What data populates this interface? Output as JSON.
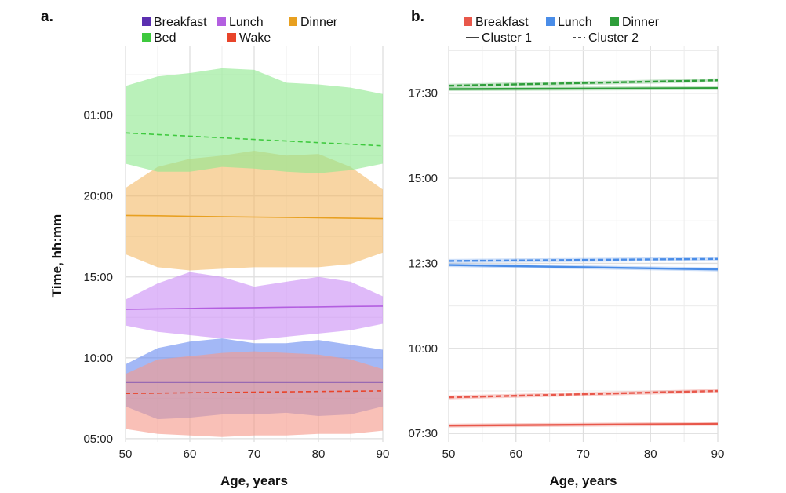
{
  "chart_data": [
    {
      "panel_label": "a.",
      "type": "area",
      "xlabel": "Age, years",
      "ylabel": "Time, hh:mm",
      "xlim": [
        50,
        90
      ],
      "ylim_hours": [
        4.8,
        29.3
      ],
      "x_ticks": [
        50,
        60,
        70,
        80,
        90
      ],
      "x_tick_labels": [
        "50",
        "60",
        "70",
        "80",
        "90"
      ],
      "y_ticks_hours": [
        5,
        10,
        15,
        20,
        25
      ],
      "y_tick_labels": [
        "05:00",
        "10:00",
        "15:00",
        "20:00",
        "01:00"
      ],
      "grid": true,
      "legend": [
        "Breakfast",
        "Lunch",
        "Dinner",
        "Bed",
        "Wake"
      ],
      "series": [
        {
          "name": "Breakfast",
          "color": "#5b2fb0",
          "band_color": "#6a8cf0",
          "line_style": "solid",
          "x": [
            50,
            55,
            60,
            65,
            70,
            75,
            80,
            85,
            90
          ],
          "mean": [
            8.5,
            8.5,
            8.5,
            8.5,
            8.5,
            8.5,
            8.5,
            8.5,
            8.5
          ],
          "upper": [
            9.6,
            10.6,
            11.0,
            11.2,
            10.9,
            10.9,
            11.1,
            10.8,
            10.5
          ],
          "lower": [
            7.0,
            6.2,
            6.3,
            6.5,
            6.5,
            6.6,
            6.4,
            6.5,
            7.0
          ]
        },
        {
          "name": "Lunch",
          "color": "#b35fe0",
          "band_color": "#cc8ff5",
          "line_style": "solid",
          "x": [
            50,
            55,
            60,
            65,
            70,
            75,
            80,
            85,
            90
          ],
          "mean": [
            13.0,
            13.03,
            13.05,
            13.08,
            13.1,
            13.13,
            13.15,
            13.18,
            13.2
          ],
          "upper": [
            13.6,
            14.6,
            15.3,
            15.0,
            14.4,
            14.7,
            15.0,
            14.7,
            13.8
          ],
          "lower": [
            12.0,
            11.6,
            11.4,
            11.2,
            11.1,
            11.3,
            11.5,
            11.7,
            12.1
          ]
        },
        {
          "name": "Dinner",
          "color": "#e8a020",
          "band_color": "#f4bc6a",
          "line_style": "solid",
          "x": [
            50,
            55,
            60,
            65,
            70,
            75,
            80,
            85,
            90
          ],
          "mean": [
            18.8,
            18.78,
            18.75,
            18.72,
            18.7,
            18.68,
            18.65,
            18.62,
            18.6
          ],
          "upper": [
            20.5,
            21.8,
            22.3,
            22.5,
            22.8,
            22.5,
            22.6,
            21.8,
            20.4
          ],
          "lower": [
            16.4,
            15.6,
            15.4,
            15.5,
            15.6,
            15.6,
            15.6,
            15.8,
            16.5
          ]
        },
        {
          "name": "Bed",
          "color": "#3ec93e",
          "band_color": "#8fe88f",
          "line_style": "dashed",
          "x": [
            50,
            55,
            60,
            65,
            70,
            75,
            80,
            85,
            90
          ],
          "mean": [
            23.9,
            23.8,
            23.7,
            23.6,
            23.5,
            23.4,
            23.3,
            23.2,
            23.1
          ],
          "upper": [
            26.8,
            27.4,
            27.6,
            27.9,
            27.8,
            27.0,
            26.9,
            26.7,
            26.3
          ],
          "lower": [
            22.0,
            21.5,
            21.5,
            21.8,
            21.7,
            21.5,
            21.4,
            21.6,
            22.0
          ]
        },
        {
          "name": "Wake",
          "color": "#e8442a",
          "band_color": "#f5998a",
          "line_style": "dashed",
          "x": [
            50,
            55,
            60,
            65,
            70,
            75,
            80,
            85,
            90
          ],
          "mean": [
            7.8,
            7.82,
            7.84,
            7.86,
            7.88,
            7.9,
            7.92,
            7.94,
            7.96
          ],
          "upper": [
            9.0,
            9.9,
            10.1,
            10.3,
            10.4,
            10.3,
            10.2,
            9.9,
            9.3
          ],
          "lower": [
            5.6,
            5.3,
            5.2,
            5.1,
            5.2,
            5.2,
            5.3,
            5.3,
            5.5
          ]
        }
      ]
    },
    {
      "panel_label": "b.",
      "type": "line",
      "xlabel": "Age, years",
      "ylabel": "",
      "xlim": [
        50,
        90
      ],
      "ylim_hours": [
        7.25,
        18.9
      ],
      "x_ticks": [
        50,
        60,
        70,
        80,
        90
      ],
      "x_tick_labels": [
        "50",
        "60",
        "70",
        "80",
        "90"
      ],
      "y_ticks_hours": [
        7.5,
        10,
        12.5,
        15,
        17.5
      ],
      "y_tick_labels": [
        "07:30",
        "10:00",
        "12:30",
        "15:00",
        "17:30"
      ],
      "grid": true,
      "legend": [
        "Breakfast",
        "Lunch",
        "Dinner",
        "Cluster 1",
        "Cluster 2"
      ],
      "legend_line_styles": {
        "Cluster 1": "solid",
        "Cluster 2": "dashed"
      },
      "series": [
        {
          "name": "Breakfast",
          "cluster": "Cluster 1",
          "color": "#e8574a",
          "line_style": "solid",
          "x": [
            50,
            90
          ],
          "y": [
            7.73,
            7.78
          ]
        },
        {
          "name": "Breakfast",
          "cluster": "Cluster 2",
          "color": "#e8574a",
          "line_style": "dashed",
          "x": [
            50,
            90
          ],
          "y": [
            8.56,
            8.75
          ]
        },
        {
          "name": "Lunch",
          "cluster": "Cluster 1",
          "color": "#4a8de8",
          "line_style": "solid",
          "x": [
            50,
            90
          ],
          "y": [
            12.45,
            12.32
          ]
        },
        {
          "name": "Lunch",
          "cluster": "Cluster 2",
          "color": "#4a8de8",
          "line_style": "dashed",
          "x": [
            50,
            90
          ],
          "y": [
            12.57,
            12.63
          ]
        },
        {
          "name": "Dinner",
          "cluster": "Cluster 1",
          "color": "#2e9e3a",
          "line_style": "solid",
          "x": [
            50,
            90
          ],
          "y": [
            17.62,
            17.65
          ]
        },
        {
          "name": "Dinner",
          "cluster": "Cluster 2",
          "color": "#2e9e3a",
          "line_style": "dashed",
          "x": [
            50,
            90
          ],
          "y": [
            17.72,
            17.88
          ]
        }
      ]
    }
  ]
}
